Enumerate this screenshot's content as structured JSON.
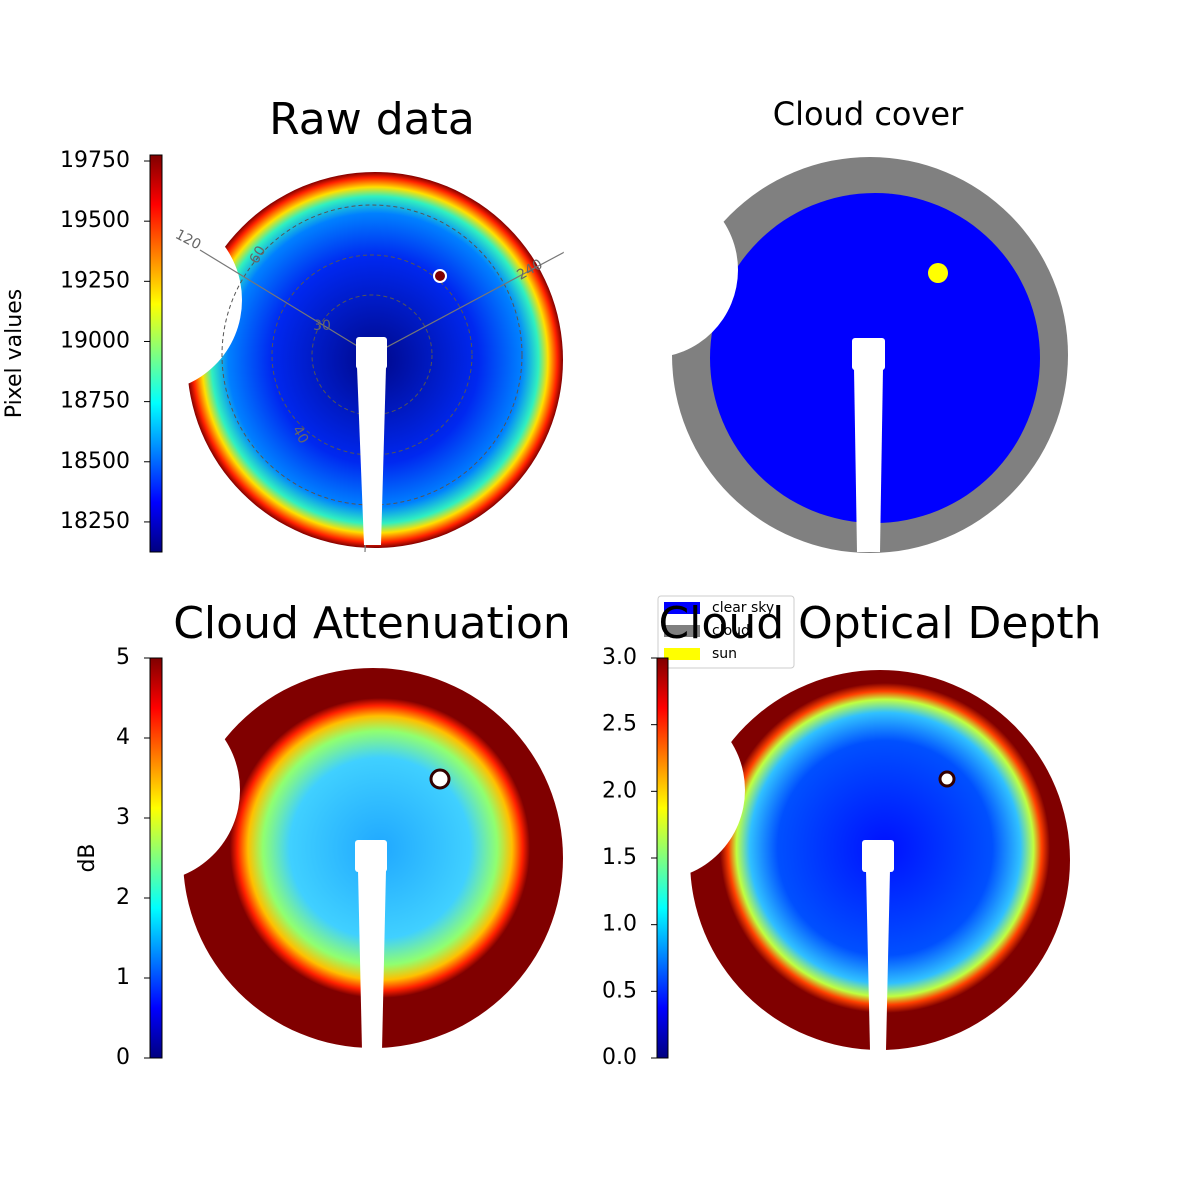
{
  "chart_data": [
    {
      "type": "image",
      "title": "Raw data",
      "ylabel": "Pixel values",
      "colormap": "jet",
      "ylim": [
        18125,
        19775
      ],
      "yticks": [
        18250,
        18500,
        18750,
        19000,
        19250,
        19500,
        19750
      ],
      "annotations": [
        "120",
        "60",
        "240",
        "30",
        "40"
      ]
    },
    {
      "type": "image",
      "title": "Cloud cover",
      "legend": [
        {
          "label": "clear sky",
          "color": "#0000ff"
        },
        {
          "label": "cloud",
          "color": "#808080"
        },
        {
          "label": "sun",
          "color": "#ffff00"
        }
      ]
    },
    {
      "type": "image",
      "title": "Cloud Attenuation",
      "ylabel": "dB",
      "colormap": "jet",
      "ylim": [
        0,
        5
      ],
      "yticks": [
        0,
        1,
        2,
        3,
        4,
        5
      ]
    },
    {
      "type": "image",
      "title": "Cloud Optical Depth",
      "colormap": "jet",
      "ylim": [
        0,
        3
      ],
      "yticks": [
        {
          "value": 0,
          "label": "0.0"
        },
        0.5,
        {
          "value": 1,
          "label": "1.0"
        },
        1.5,
        {
          "value": 2,
          "label": "2.0"
        },
        2.5,
        {
          "value": 3,
          "label": "3.0"
        }
      ]
    }
  ]
}
